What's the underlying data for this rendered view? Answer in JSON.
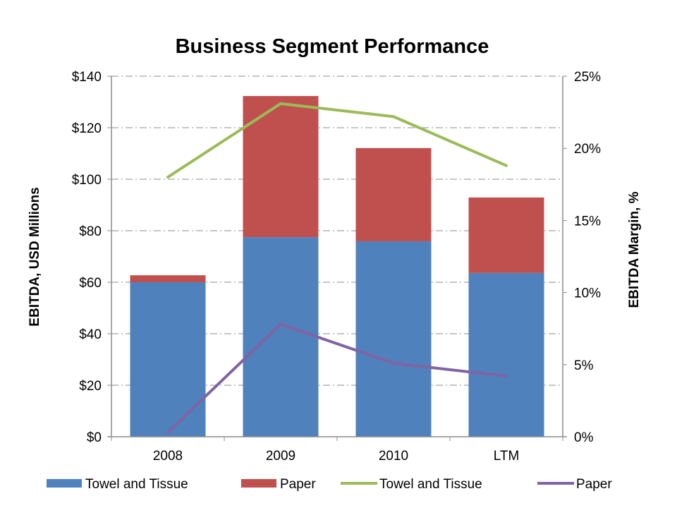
{
  "chart_data": {
    "type": "bar",
    "subtype": "stacked-bar-with-secondary-lines",
    "title": "Business Segment Performance",
    "categories": [
      "2008",
      "2009",
      "2010",
      "LTM"
    ],
    "xlabel": "",
    "ylabel": "EBITDA, USD Millions",
    "y2label": "EBITDA Margin, %",
    "ylim": [
      0,
      140
    ],
    "y2lim": [
      0,
      25
    ],
    "yticks": [
      "$0",
      "$20",
      "$40",
      "$60",
      "$80",
      "$100",
      "$120",
      "$140"
    ],
    "ytick_values": [
      0,
      20,
      40,
      60,
      80,
      100,
      120,
      140
    ],
    "y2ticks": [
      "0%",
      "5%",
      "10%",
      "15%",
      "20%",
      "25%"
    ],
    "y2tick_values": [
      0,
      5,
      10,
      15,
      20,
      25
    ],
    "grid": true,
    "legend_position": "bottom",
    "bar_series": [
      {
        "name": "Towel and Tissue",
        "color": "#4F81BD",
        "values": [
          60.0,
          77.5,
          75.9,
          63.6
        ]
      },
      {
        "name": "Paper",
        "color": "#C0504D",
        "values": [
          2.7,
          54.8,
          36.2,
          29.3
        ]
      }
    ],
    "line_series": [
      {
        "name": "Towel and Tissue",
        "axis": "secondary",
        "color": "#9BBB59",
        "values": [
          18.0,
          23.1,
          22.2,
          18.8
        ]
      },
      {
        "name": "Paper",
        "axis": "secondary",
        "color": "#8064A2",
        "values": [
          0.3,
          7.8,
          5.1,
          4.2
        ]
      }
    ],
    "legend": [
      {
        "label": "Towel and Tissue",
        "kind": "bar",
        "color": "#4F81BD"
      },
      {
        "label": "Paper",
        "kind": "bar",
        "color": "#C0504D"
      },
      {
        "label": "Towel and Tissue",
        "kind": "line",
        "color": "#9BBB59"
      },
      {
        "label": "Paper",
        "kind": "line",
        "color": "#8064A2"
      }
    ]
  }
}
